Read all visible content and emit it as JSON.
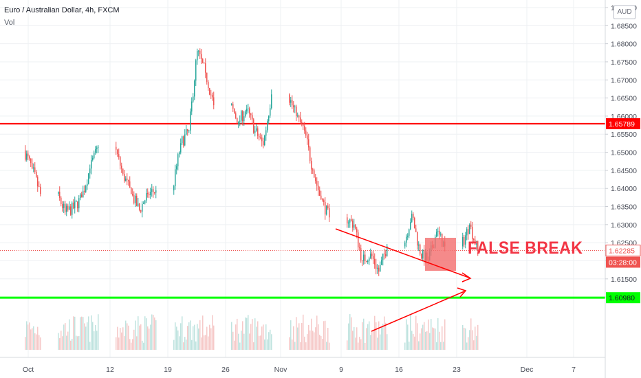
{
  "header": {
    "symbol_title": "Euro / Australian Dollar, 4h, FXCM",
    "volume_label": "Vol",
    "currency_button": "AUD"
  },
  "annotation": {
    "false_break_text": "FALSE BREAK"
  },
  "colors": {
    "bull": "#26a69a",
    "bear": "#ef5350",
    "resistance_line": "#ff0000",
    "support_line": "#00ff00",
    "triangle_lines": "#ff0000",
    "false_break_box": "#f26d6d",
    "last_price_badge": "#ef5350"
  },
  "chart_data": {
    "type": "candlestick",
    "symbol": "Euro / Australian Dollar",
    "timeframe": "4h",
    "source": "FXCM",
    "y_axis": {
      "ticks": [
        "1.69000",
        "1.68500",
        "1.68000",
        "1.67500",
        "1.67000",
        "1.66500",
        "1.66000",
        "1.65500",
        "1.65000",
        "1.64500",
        "1.64000",
        "1.63500",
        "1.63000",
        "1.62500",
        "1.62000",
        "1.61500",
        "1.61000"
      ],
      "range": [
        1.6085,
        1.6905
      ]
    },
    "x_axis": {
      "ticks": [
        "Oct",
        "12",
        "19",
        "26",
        "Nov",
        "9",
        "16",
        "23",
        "Dec",
        "7"
      ]
    },
    "levels": [
      {
        "name": "resistance",
        "value": 1.65789,
        "label": "1.65789"
      },
      {
        "name": "support",
        "value": 1.6098,
        "label": "1.60980"
      }
    ],
    "last_price": {
      "value": 1.62285,
      "label": "1.62285",
      "countdown": "03:28:00"
    },
    "daily_closes": [
      {
        "date": "Oct 1",
        "close": 1.6455
      },
      {
        "date": "Oct 2",
        "close": 1.6385
      },
      {
        "date": "Oct 5",
        "close": 1.6335
      },
      {
        "date": "Oct 6",
        "close": 1.6345
      },
      {
        "date": "Oct 7",
        "close": 1.6375
      },
      {
        "date": "Oct 8",
        "close": 1.6455
      },
      {
        "date": "Oct 9",
        "close": 1.6515
      },
      {
        "date": "Oct 12",
        "close": 1.644
      },
      {
        "date": "Oct 13",
        "close": 1.6385
      },
      {
        "date": "Oct 14",
        "close": 1.634
      },
      {
        "date": "Oct 15",
        "close": 1.6385
      },
      {
        "date": "Oct 16",
        "close": 1.6395
      },
      {
        "date": "Oct 19",
        "close": 1.6525
      },
      {
        "date": "Oct 20",
        "close": 1.656
      },
      {
        "date": "Oct 21",
        "close": 1.678
      },
      {
        "date": "Oct 22",
        "close": 1.672
      },
      {
        "date": "Oct 23",
        "close": 1.663
      },
      {
        "date": "Oct 26",
        "close": 1.6585
      },
      {
        "date": "Oct 27",
        "close": 1.662
      },
      {
        "date": "Oct 28",
        "close": 1.656
      },
      {
        "date": "Oct 29",
        "close": 1.652
      },
      {
        "date": "Oct 30",
        "close": 1.666
      },
      {
        "date": "Nov 2",
        "close": 1.66
      },
      {
        "date": "Nov 3",
        "close": 1.656
      },
      {
        "date": "Nov 4",
        "close": 1.645
      },
      {
        "date": "Nov 5",
        "close": 1.637
      },
      {
        "date": "Nov 6",
        "close": 1.632
      },
      {
        "date": "Nov 9",
        "close": 1.63
      },
      {
        "date": "Nov 10",
        "close": 1.62
      },
      {
        "date": "Nov 11",
        "close": 1.622
      },
      {
        "date": "Nov 12",
        "close": 1.617
      },
      {
        "date": "Nov 13",
        "close": 1.624
      },
      {
        "date": "Nov 16",
        "close": 1.633
      },
      {
        "date": "Nov 17",
        "close": 1.622
      },
      {
        "date": "Nov 18",
        "close": 1.62
      },
      {
        "date": "Nov 19",
        "close": 1.628
      },
      {
        "date": "Nov 20",
        "close": 1.624
      },
      {
        "date": "Nov 23",
        "close": 1.63
      },
      {
        "date": "Nov 24",
        "close": 1.6228
      }
    ]
  }
}
